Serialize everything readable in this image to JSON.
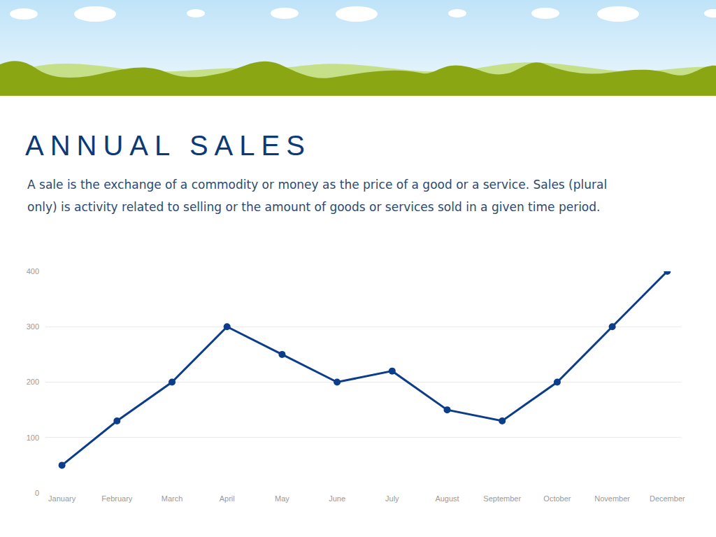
{
  "chart_data": {
    "type": "line",
    "title": "ANNUAL SALES",
    "subtitle": " A sale is the exchange of a commodity or money as the price of a good or a service. Sales (plural only) is activity related to selling or the amount of goods or services sold in a given time period.",
    "categories": [
      "January",
      "February",
      "March",
      "April",
      "May",
      "June",
      "July",
      "August",
      "September",
      "October",
      "November",
      "December"
    ],
    "values": [
      50,
      130,
      200,
      300,
      250,
      200,
      220,
      150,
      130,
      200,
      300,
      400
    ],
    "color": "#0c3d8a",
    "marker": "circle",
    "line_style": "solid",
    "ylim": [
      0,
      400
    ],
    "yticks": [
      0,
      100,
      200,
      300,
      400
    ],
    "grid": true
  }
}
